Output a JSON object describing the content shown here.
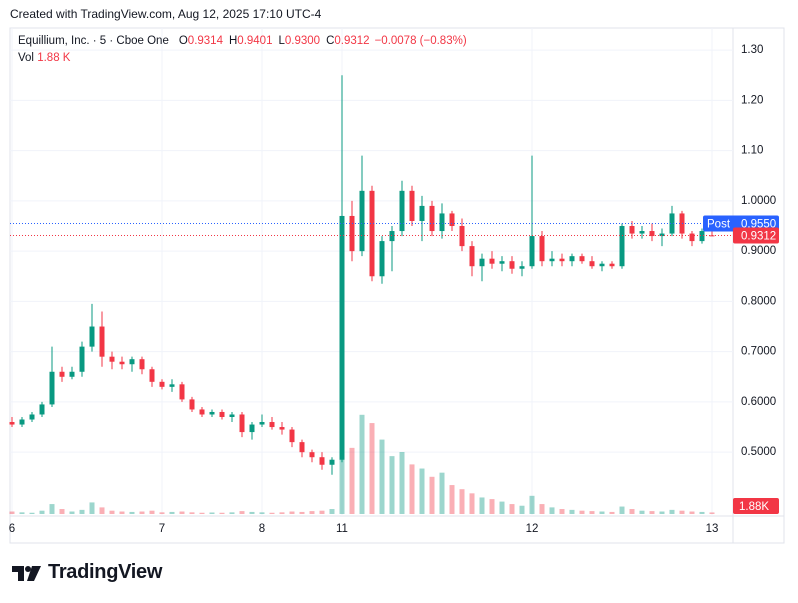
{
  "top_bar": "Created with TradingView.com, Aug 12, 2025 17:10 UTC-4",
  "footer_logo": "TradingView",
  "chart_data": {
    "type": "candlestick",
    "title": "Equillium, Inc. · 5 · Cboe One",
    "ohlc_legend": [
      {
        "key": "O",
        "value": "0.9314"
      },
      {
        "key": "H",
        "value": "0.9401"
      },
      {
        "key": "L",
        "value": "0.9300"
      },
      {
        "key": "C",
        "value": "0.9312"
      }
    ],
    "change": "−0.0078 (−0.83%)",
    "volume_legend": {
      "key": "Vol",
      "value": "1.88 K"
    },
    "categories": [
      "6",
      null,
      null,
      null,
      null,
      null,
      null,
      null,
      null,
      null,
      null,
      null,
      null,
      null,
      null,
      "7",
      null,
      null,
      null,
      null,
      null,
      null,
      null,
      null,
      null,
      "8",
      null,
      null,
      null,
      null,
      null,
      null,
      null,
      "11",
      null,
      null,
      null,
      null,
      null,
      null,
      null,
      null,
      null,
      null,
      null,
      null,
      null,
      null,
      null,
      null,
      null,
      null,
      "12",
      null,
      null,
      null,
      null,
      null,
      null,
      null,
      null,
      null,
      null,
      null,
      null,
      null,
      null,
      null,
      null,
      null,
      "13"
    ],
    "open": [
      0.56,
      0.555,
      0.565,
      0.575,
      0.595,
      0.66,
      0.65,
      0.66,
      0.71,
      0.75,
      0.69,
      0.68,
      0.675,
      0.685,
      0.665,
      0.64,
      0.63,
      0.635,
      0.605,
      0.585,
      0.575,
      0.58,
      0.57,
      0.575,
      0.54,
      0.555,
      0.56,
      0.55,
      0.545,
      0.52,
      0.5,
      0.49,
      0.475,
      0.485,
      0.97,
      0.9,
      1.02,
      0.85,
      0.92,
      0.94,
      1.02,
      0.96,
      0.99,
      0.94,
      0.975,
      0.95,
      0.91,
      0.87,
      0.885,
      0.875,
      0.88,
      0.865,
      0.87,
      0.93,
      0.88,
      0.885,
      0.88,
      0.89,
      0.88,
      0.87,
      0.875,
      0.87,
      0.95,
      0.935,
      0.94,
      0.93,
      0.935,
      0.975,
      0.935,
      0.92,
      0.9314
    ],
    "high": [
      0.57,
      0.57,
      0.58,
      0.6,
      0.71,
      0.67,
      0.67,
      0.72,
      0.795,
      0.78,
      0.7,
      0.69,
      0.69,
      0.69,
      0.67,
      0.645,
      0.645,
      0.64,
      0.61,
      0.59,
      0.585,
      0.585,
      0.58,
      0.58,
      0.56,
      0.575,
      0.57,
      0.56,
      0.55,
      0.525,
      0.505,
      0.5,
      0.49,
      1.25,
      1.0,
      1.09,
      1.03,
      0.93,
      0.95,
      1.04,
      1.03,
      1.01,
      1.0,
      0.995,
      0.98,
      0.965,
      0.92,
      0.895,
      0.9,
      0.89,
      0.89,
      0.88,
      1.09,
      0.94,
      0.9,
      0.895,
      0.895,
      0.895,
      0.89,
      0.88,
      0.88,
      0.955,
      0.96,
      0.95,
      0.955,
      0.945,
      0.99,
      0.98,
      0.94,
      0.945,
      0.9401
    ],
    "low": [
      0.55,
      0.55,
      0.56,
      0.57,
      0.59,
      0.64,
      0.645,
      0.65,
      0.7,
      0.67,
      0.665,
      0.665,
      0.66,
      0.655,
      0.63,
      0.625,
      0.62,
      0.6,
      0.58,
      0.57,
      0.57,
      0.565,
      0.56,
      0.53,
      0.525,
      0.55,
      0.545,
      0.535,
      0.51,
      0.49,
      0.48,
      0.465,
      0.455,
      0.48,
      0.88,
      0.89,
      0.84,
      0.835,
      0.86,
      0.93,
      0.95,
      0.92,
      0.93,
      0.925,
      0.94,
      0.9,
      0.85,
      0.84,
      0.865,
      0.86,
      0.855,
      0.85,
      0.865,
      0.87,
      0.87,
      0.87,
      0.87,
      0.875,
      0.865,
      0.86,
      0.865,
      0.865,
      0.925,
      0.925,
      0.92,
      0.91,
      0.93,
      0.925,
      0.91,
      0.915,
      0.93
    ],
    "close": [
      0.555,
      0.565,
      0.575,
      0.595,
      0.66,
      0.65,
      0.66,
      0.71,
      0.75,
      0.69,
      0.68,
      0.675,
      0.685,
      0.665,
      0.64,
      0.63,
      0.635,
      0.605,
      0.585,
      0.575,
      0.58,
      0.57,
      0.575,
      0.54,
      0.555,
      0.56,
      0.55,
      0.545,
      0.52,
      0.5,
      0.49,
      0.475,
      0.485,
      0.97,
      0.9,
      1.02,
      0.85,
      0.92,
      0.94,
      1.02,
      0.96,
      0.99,
      0.94,
      0.975,
      0.95,
      0.91,
      0.87,
      0.885,
      0.875,
      0.88,
      0.865,
      0.87,
      0.93,
      0.88,
      0.885,
      0.88,
      0.89,
      0.88,
      0.87,
      0.875,
      0.87,
      0.95,
      0.935,
      0.94,
      0.93,
      0.935,
      0.975,
      0.935,
      0.92,
      0.94,
      0.9312
    ],
    "volumes": [
      3000,
      2000,
      1500,
      4000,
      12000,
      6000,
      3000,
      5000,
      14000,
      8000,
      4000,
      3000,
      2500,
      3000,
      4000,
      2000,
      2500,
      3000,
      2000,
      1500,
      1800,
      1500,
      2000,
      3500,
      2500,
      2000,
      1500,
      2000,
      3000,
      2500,
      3500,
      4000,
      6000,
      150000,
      80000,
      120000,
      110000,
      90000,
      70000,
      75000,
      60000,
      55000,
      45000,
      50000,
      35000,
      30000,
      25000,
      20000,
      18000,
      15000,
      12000,
      10000,
      22000,
      12000,
      8000,
      6000,
      5000,
      4000,
      3500,
      3000,
      2500,
      9000,
      6000,
      4000,
      3500,
      3000,
      5000,
      4000,
      3000,
      2500,
      1880
    ],
    "last_volume_label": "1.88K",
    "up_color": "#089981",
    "down_color": "#f23645",
    "post_price": {
      "label": "Post",
      "value": 0.955,
      "value_label": "0.9550",
      "color": "#2962ff"
    },
    "ylim": [
      0.377,
      1.34
    ],
    "yticks": [
      {
        "value": 1.3,
        "label": "1.30"
      },
      {
        "value": 1.2,
        "label": "1.20"
      },
      {
        "value": 1.1,
        "label": "1.10"
      },
      {
        "value": 1.0,
        "label": "1.0000"
      },
      {
        "value": 0.9,
        "label": "0.9000"
      },
      {
        "value": 0.8,
        "label": "0.8000"
      },
      {
        "value": 0.7,
        "label": "0.7000"
      },
      {
        "value": 0.6,
        "label": "0.6000"
      },
      {
        "value": 0.5,
        "label": "0.5000"
      }
    ],
    "grid": true
  }
}
